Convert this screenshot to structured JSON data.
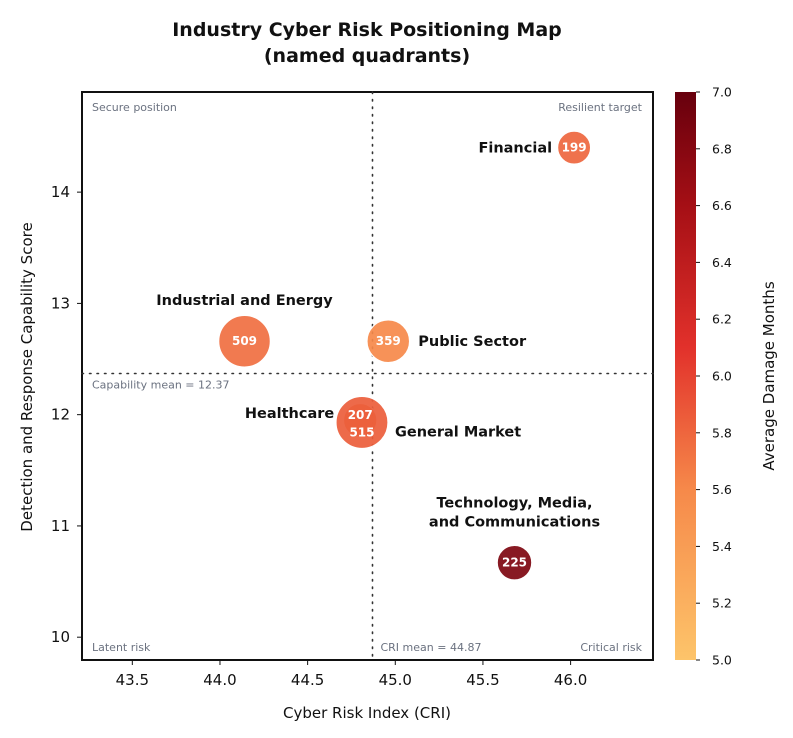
{
  "chart_data": {
    "type": "scatter",
    "title": "Industry Cyber Risk Positioning Map",
    "subtitle": "(named quadrants)",
    "xlabel": "Cyber Risk Index (CRI)",
    "ylabel": "Detection and Response Capability Score",
    "xlim": [
      43.3,
      46.45
    ],
    "ylim": [
      9.8,
      14.9
    ],
    "xticks": [
      "43.5",
      "44.0",
      "44.5",
      "45.0",
      "45.5",
      "46.0"
    ],
    "yticks": [
      "10",
      "11",
      "12",
      "13",
      "14"
    ],
    "grid": false,
    "reference_lines": {
      "x_mean": 44.87,
      "y_mean": 12.37,
      "x_mean_label": "CRI mean = 44.87",
      "y_mean_label": "Capability mean = 12.37"
    },
    "quadrants": {
      "top_left": "Secure position",
      "top_right": "Resilient target",
      "bottom_left": "Latent risk",
      "bottom_right": "Critical risk"
    },
    "colorbar": {
      "label": "Average Damage Months",
      "range": [
        5.0,
        7.0
      ],
      "ticks": [
        "5.0",
        "5.2",
        "5.4",
        "5.6",
        "5.8",
        "6.0",
        "6.2",
        "6.4",
        "6.6",
        "6.8",
        "7.0"
      ],
      "colors": [
        "#fdc46a",
        "#f6894a",
        "#e2312b",
        "#a50f15",
        "#67000d"
      ]
    },
    "points": [
      {
        "name": "Financial",
        "x": 46.02,
        "y": 14.4,
        "size": 199,
        "color_value": 5.8
      },
      {
        "name": "Industrial and Energy",
        "x": 44.14,
        "y": 12.66,
        "size": 509,
        "color_value": 5.75
      },
      {
        "name": "Public Sector",
        "x": 44.96,
        "y": 12.66,
        "size": 359,
        "color_value": 5.6
      },
      {
        "name": "Healthcare",
        "x": 44.8,
        "y": 11.95,
        "size": 207,
        "color_value": 5.7
      },
      {
        "name": "General Market",
        "x": 44.81,
        "y": 11.93,
        "size": 515,
        "color_value": 5.85
      },
      {
        "name": "Technology, Media, and Communications",
        "name_lines": [
          "Technology, Media,",
          "and Communications"
        ],
        "x": 45.68,
        "y": 10.67,
        "size": 225,
        "color_value": 6.85
      }
    ]
  }
}
